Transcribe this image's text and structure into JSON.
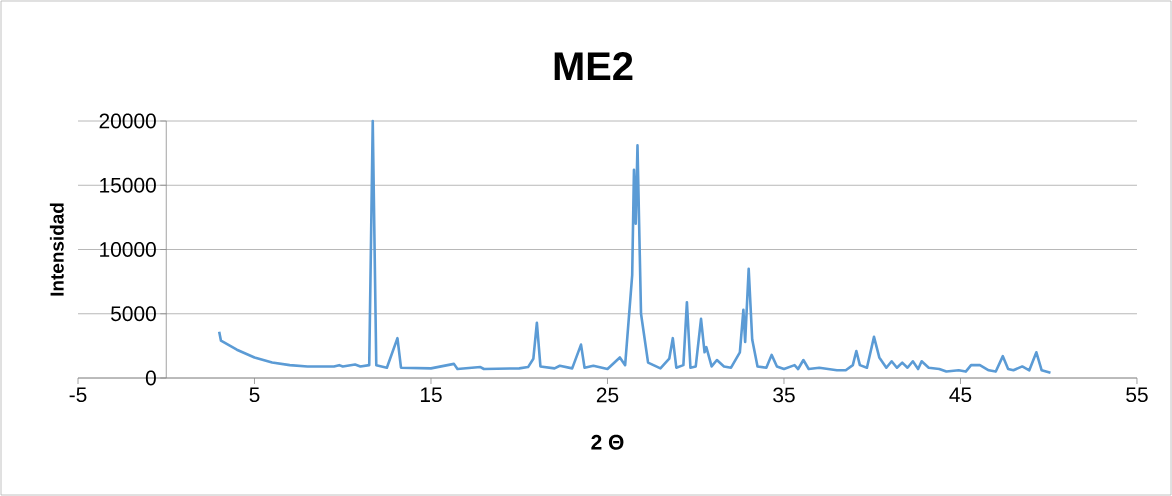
{
  "chart_data": {
    "type": "line",
    "title": "ME2",
    "xlabel": "2 Θ",
    "ylabel": "Intensidad",
    "xlim": [
      -5,
      55
    ],
    "xticks": [
      -5,
      5,
      15,
      25,
      35,
      45,
      55
    ],
    "ylim": [
      0,
      20000
    ],
    "yticks": [
      0,
      5000,
      10000,
      15000,
      20000
    ],
    "grid": "y",
    "marker": "none",
    "line_style": "solid",
    "series": [
      {
        "color": "#5b9bd5",
        "x": [
          3,
          3.1,
          4,
          5,
          6,
          7,
          8,
          9.5,
          9.8,
          10,
          10.7,
          11,
          11.5,
          11.7,
          11.9,
          12.5,
          13.1,
          13.3,
          15,
          16.3,
          16.5,
          17.8,
          18,
          20,
          20.5,
          20.8,
          21,
          21.2,
          22,
          22.3,
          23,
          23.5,
          23.7,
          24.2,
          25,
          25.7,
          26,
          26.4,
          26.5,
          26.6,
          26.7,
          26.9,
          27.3,
          28,
          28.5,
          28.7,
          28.9,
          29.3,
          29.5,
          29.7,
          30,
          30.3,
          30.5,
          30.6,
          30.9,
          31.2,
          31.6,
          32,
          32.5,
          32.7,
          32.8,
          33,
          33.2,
          33.5,
          34,
          34.3,
          34.6,
          35,
          35.6,
          35.8,
          36.1,
          36.4,
          37,
          38,
          38.5,
          38.9,
          39.1,
          39.3,
          39.7,
          40.1,
          40.4,
          40.8,
          41.1,
          41.4,
          41.7,
          42,
          42.3,
          42.6,
          42.8,
          43.2,
          43.8,
          44.2,
          44.9,
          45.3,
          45.6,
          46.1,
          46.6,
          47,
          47.4,
          47.7,
          48,
          48.5,
          48.9,
          49.3,
          49.6,
          50.1
        ],
        "values": [
          3600,
          2900,
          2200,
          1600,
          1200,
          1000,
          900,
          900,
          1000,
          900,
          1050,
          900,
          1000,
          20000,
          1000,
          800,
          3100,
          800,
          750,
          1100,
          700,
          850,
          700,
          750,
          850,
          1500,
          4300,
          900,
          750,
          950,
          750,
          2600,
          800,
          950,
          700,
          1600,
          1000,
          8000,
          16200,
          12000,
          18100,
          5000,
          1200,
          750,
          1500,
          3100,
          800,
          1000,
          5900,
          800,
          900,
          4600,
          2000,
          2400,
          900,
          1400,
          900,
          800,
          2000,
          5300,
          2800,
          8500,
          3000,
          900,
          800,
          1800,
          900,
          700,
          1000,
          700,
          1400,
          700,
          800,
          600,
          600,
          1000,
          2100,
          1000,
          800,
          3200,
          1600,
          800,
          1300,
          800,
          1200,
          800,
          1300,
          700,
          1300,
          800,
          700,
          500,
          600,
          500,
          1000,
          1000,
          600,
          500,
          1700,
          700,
          600,
          900,
          600,
          2000,
          600,
          400
        ]
      }
    ]
  }
}
